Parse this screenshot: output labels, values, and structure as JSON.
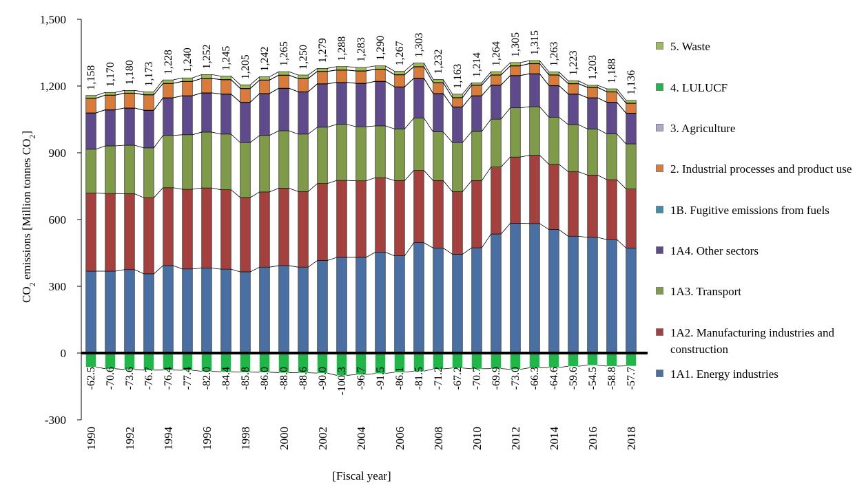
{
  "chart_data": {
    "type": "bar",
    "stacked": true,
    "ylabel": "CO2 emissions [Million tonnes CO2]",
    "ylabel_main": "CO",
    "ylabel_sub": "2",
    "ylabel_mid": " emissions   [Million tonnes CO",
    "ylabel_end": "]",
    "xlabel": "[Fiscal year]",
    "ylim": [
      -300,
      1500
    ],
    "yticks": [
      "-300",
      "0",
      "300",
      "600",
      "900",
      "1,200",
      "1,500"
    ],
    "ytick_values": [
      -300,
      0,
      300,
      600,
      900,
      1200,
      1500
    ],
    "years": [
      "1990",
      "1991",
      "1992",
      "1993",
      "1994",
      "1995",
      "1996",
      "1997",
      "1998",
      "1999",
      "2000",
      "2001",
      "2002",
      "2003",
      "2004",
      "2005",
      "2006",
      "2007",
      "2008",
      "2009",
      "2010",
      "2011",
      "2012",
      "2013",
      "2014",
      "2015",
      "2016",
      "2017",
      "2018"
    ],
    "xtick_labels": [
      "1990",
      "1992",
      "1994",
      "1996",
      "1998",
      "2000",
      "2002",
      "2004",
      "2006",
      "2008",
      "2010",
      "2012",
      "2014",
      "2016",
      "2018"
    ],
    "total_labels": [
      "1,158",
      "1,170",
      "1,180",
      "1,173",
      "1,228",
      "1,240",
      "1,252",
      "1,245",
      "1,205",
      "1,242",
      "1,265",
      "1,250",
      "1,279",
      "1,288",
      "1,283",
      "1,290",
      "1,267",
      "1,303",
      "1,232",
      "1,163",
      "1,214",
      "1,264",
      "1,305",
      "1,315",
      "1,263",
      "1,223",
      "1,203",
      "1,188",
      "1,136"
    ],
    "lulucf_labels": [
      "-62.5",
      "-70.6",
      "-73.6",
      "-76.7",
      "-76.4",
      "-77.4",
      "-82.0",
      "-84.4",
      "-85.8",
      "-86.0",
      "-88.0",
      "-88.6",
      "-90.0",
      "-100.3",
      "-96.7",
      "-91.5",
      "-86.1",
      "-81.5",
      "-71.2",
      "-67.2",
      "-70.7",
      "-69.9",
      "-73.0",
      "-66.3",
      "-64.6",
      "-59.6",
      "-54.5",
      "-58.8",
      "-57.7"
    ],
    "series": [
      {
        "name": "1A1. Energy industries",
        "color": "#4a6fa3",
        "values": [
          368,
          368,
          375,
          356,
          393,
          378,
          382,
          377,
          365,
          386,
          393,
          386,
          416,
          430,
          430,
          453,
          437,
          496,
          472,
          444,
          473,
          535,
          583,
          582,
          555,
          525,
          520,
          510,
          472
        ]
      },
      {
        "name": "1A2. Manufacturing industries and construction",
        "color": "#a4413f",
        "values": [
          351,
          349,
          341,
          342,
          350,
          358,
          360,
          357,
          334,
          338,
          348,
          340,
          346,
          346,
          344,
          335,
          338,
          325,
          303,
          281,
          302,
          301,
          298,
          307,
          293,
          290,
          280,
          269,
          265
        ]
      },
      {
        "name": "1A3. Transport",
        "color": "#7f9a48",
        "values": [
          197,
          214,
          218,
          224,
          235,
          245,
          251,
          250,
          247,
          254,
          258,
          258,
          253,
          252,
          243,
          233,
          232,
          235,
          219,
          221,
          221,
          215,
          221,
          218,
          212,
          212,
          207,
          206,
          203
        ]
      },
      {
        "name": "1A4. Other sectors",
        "color": "#5f4b8b",
        "values": [
          163,
          162,
          167,
          169,
          169,
          175,
          176,
          180,
          181,
          188,
          191,
          190,
          195,
          188,
          195,
          200,
          189,
          179,
          172,
          160,
          160,
          153,
          145,
          148,
          142,
          137,
          140,
          142,
          138
        ]
      },
      {
        "name": "1B. Fugitive emissions from fuels",
        "color": "#3f8fa8",
        "values": [
          0.5,
          0.5,
          0.5,
          0.5,
          0.5,
          0.5,
          0.5,
          0.5,
          0.5,
          0.5,
          0.5,
          0.5,
          0.5,
          0.5,
          0.5,
          0.5,
          0.5,
          0.5,
          0.5,
          0.5,
          0.5,
          0.5,
          0.5,
          0.5,
          0.5,
          0.5,
          0.5,
          0.5,
          0.5
        ]
      },
      {
        "name": "2.  Industrial processes and product use",
        "color": "#d97b3a",
        "values": [
          65,
          65,
          66,
          69,
          64,
          64,
          64,
          64,
          61,
          60,
          58,
          59,
          55,
          55,
          55,
          54,
          54,
          51,
          48,
          41,
          47,
          45,
          43,
          45,
          47,
          46,
          46,
          46,
          44
        ]
      },
      {
        "name": "3. Agriculture",
        "color": "#b3a6c9",
        "values": [
          1,
          1,
          1,
          1,
          1,
          1,
          1,
          1,
          1,
          1,
          1,
          1,
          1,
          1,
          1,
          1,
          1,
          1,
          1,
          1,
          1,
          1,
          1,
          1,
          1,
          1,
          1,
          1,
          1
        ]
      },
      {
        "name": "4. LULUCF",
        "color": "#21b54a",
        "values": [
          -62.5,
          -70.6,
          -73.6,
          -76.7,
          -76.4,
          -77.4,
          -82.0,
          -84.4,
          -85.8,
          -86.0,
          -88.0,
          -88.6,
          -90.0,
          -100.3,
          -96.7,
          -91.5,
          -86.1,
          -81.5,
          -71.2,
          -67.2,
          -70.7,
          -69.9,
          -73.0,
          -66.3,
          -64.6,
          -59.6,
          -54.5,
          -58.8,
          -57.7
        ]
      },
      {
        "name": "5. Waste",
        "color": "#9bbb59",
        "values": [
          12,
          12,
          12,
          12,
          15,
          15,
          17,
          15,
          16,
          14,
          15,
          15,
          13,
          15,
          15,
          14,
          15,
          16,
          14,
          15,
          10,
          14,
          14,
          13,
          13,
          12,
          9,
          13,
          12
        ]
      }
    ],
    "legend_position": "right",
    "legend_order": [
      {
        "label": "5. Waste",
        "color": "#9bbb59"
      },
      {
        "label": "4. LULUCF",
        "color": "#21b54a"
      },
      {
        "label": "3. Agriculture",
        "color": "#b3a6c9"
      },
      {
        "label": "2.  Industrial processes and product use",
        "color": "#d97b3a"
      },
      {
        "label": "1B. Fugitive emissions from fuels",
        "color": "#3f8fa8"
      },
      {
        "label": "1A4. Other sectors",
        "color": "#5f4b8b"
      },
      {
        "label": "1A3. Transport",
        "color": "#7f9a48"
      },
      {
        "label": "1A2. Manufacturing industries and construction",
        "color": "#a4413f"
      },
      {
        "label": "1A1. Energy industries",
        "color": "#4a6fa3"
      }
    ]
  }
}
